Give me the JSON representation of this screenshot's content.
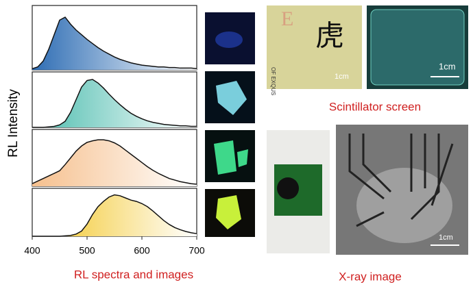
{
  "chart_data": {
    "type": "area",
    "y_label": "RL Intensity",
    "x_title": "RL spectra and images",
    "xlim": [
      400,
      700
    ],
    "xticks": [
      400,
      500,
      600,
      700
    ],
    "ylim": [
      0,
      1.1
    ],
    "x": [
      400,
      410,
      420,
      430,
      440,
      450,
      460,
      470,
      480,
      490,
      500,
      510,
      520,
      530,
      540,
      550,
      560,
      570,
      580,
      590,
      600,
      610,
      620,
      630,
      640,
      650,
      660,
      670,
      680,
      690,
      700
    ],
    "series": [
      {
        "color": "#2e6db4",
        "values": [
          0.02,
          0.05,
          0.15,
          0.35,
          0.6,
          0.85,
          0.9,
          0.78,
          0.68,
          0.6,
          0.52,
          0.45,
          0.38,
          0.32,
          0.27,
          0.22,
          0.18,
          0.15,
          0.12,
          0.1,
          0.08,
          0.07,
          0.06,
          0.05,
          0.05,
          0.04,
          0.04,
          0.03,
          0.03,
          0.03,
          0.02
        ]
      },
      {
        "color": "#4cbcae",
        "values": [
          0,
          0,
          0,
          0.01,
          0.02,
          0.05,
          0.12,
          0.3,
          0.55,
          0.8,
          0.93,
          0.95,
          0.88,
          0.78,
          0.66,
          0.55,
          0.45,
          0.36,
          0.28,
          0.22,
          0.17,
          0.13,
          0.1,
          0.08,
          0.06,
          0.05,
          0.04,
          0.03,
          0.03,
          0.02,
          0.02
        ]
      },
      {
        "color": "#f6c08e",
        "values": [
          0.05,
          0.1,
          0.15,
          0.2,
          0.25,
          0.3,
          0.42,
          0.55,
          0.68,
          0.78,
          0.85,
          0.88,
          0.9,
          0.9,
          0.88,
          0.84,
          0.78,
          0.7,
          0.62,
          0.54,
          0.46,
          0.38,
          0.31,
          0.25,
          0.2,
          0.15,
          0.12,
          0.09,
          0.07,
          0.05,
          0.04
        ]
      },
      {
        "color": "#f2c420",
        "values": [
          0,
          0,
          0,
          0,
          0,
          0,
          0.01,
          0.02,
          0.05,
          0.12,
          0.28,
          0.5,
          0.68,
          0.8,
          0.9,
          0.95,
          0.93,
          0.88,
          0.83,
          0.8,
          0.75,
          0.68,
          0.58,
          0.47,
          0.36,
          0.27,
          0.2,
          0.15,
          0.11,
          0.08,
          0.06
        ]
      }
    ]
  },
  "photos": {
    "screen_text": [
      "E",
      "虎",
      "OF EXQUS"
    ],
    "scale_labels": [
      "1cm",
      "1cm",
      "1cm"
    ],
    "scintillator_caption": "Scintillator screen",
    "xray_caption": "X-ray image"
  }
}
